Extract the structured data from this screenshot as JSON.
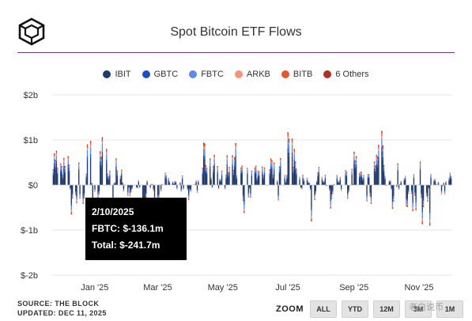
{
  "header": {
    "title": "Spot Bitcoin ETF Flows"
  },
  "chart_data": {
    "type": "bar",
    "title": "Spot Bitcoin ETF Flows",
    "y_unit": "USD",
    "ylim": [
      -2000,
      2000
    ],
    "y_ticks": [
      {
        "value": 2000,
        "label": "$2b"
      },
      {
        "value": 1000,
        "label": "$1b"
      },
      {
        "value": 0,
        "label": "$0"
      },
      {
        "value": -1000,
        "label": "$-1b"
      },
      {
        "value": -2000,
        "label": "$-2b"
      }
    ],
    "x_range": [
      "2024-12-01",
      "2025-12-11"
    ],
    "x_ticks": [
      {
        "date": "2025-01-01",
        "label": "Jan '25"
      },
      {
        "date": "2025-03-01",
        "label": "Mar '25"
      },
      {
        "date": "2025-05-01",
        "label": "May '25"
      },
      {
        "date": "2025-07-01",
        "label": "Jul '25"
      },
      {
        "date": "2025-09-01",
        "label": "Sep '25"
      },
      {
        "date": "2025-11-01",
        "label": "Nov '25"
      }
    ],
    "grid": true,
    "legend_position": "top-center",
    "series": [
      {
        "name": "IBIT",
        "color": "#1f3a6b"
      },
      {
        "name": "GBTC",
        "color": "#1b4fc4"
      },
      {
        "name": "FBTC",
        "color": "#5b8ce8"
      },
      {
        "name": "ARKB",
        "color": "#f4937a"
      },
      {
        "name": "BITB",
        "color": "#e8542b"
      },
      {
        "name": "6 Others",
        "color": "#b03020"
      }
    ],
    "daily_total": [
      {
        "date": "2024-12-02",
        "value": 350
      },
      {
        "date": "2024-12-03",
        "value": 700
      },
      {
        "date": "2024-12-04",
        "value": 560
      },
      {
        "date": "2024-12-05",
        "value": 760
      },
      {
        "date": "2024-12-06",
        "value": 380
      },
      {
        "date": "2024-12-09",
        "value": 480
      },
      {
        "date": "2024-12-10",
        "value": 420
      },
      {
        "date": "2024-12-11",
        "value": 220
      },
      {
        "date": "2024-12-12",
        "value": 600
      },
      {
        "date": "2024-12-13",
        "value": 420
      },
      {
        "date": "2024-12-16",
        "value": 640
      },
      {
        "date": "2024-12-17",
        "value": 450
      },
      {
        "date": "2024-12-18",
        "value": -100
      },
      {
        "date": "2024-12-19",
        "value": -650
      },
      {
        "date": "2024-12-20",
        "value": -300
      },
      {
        "date": "2024-12-23",
        "value": -220
      },
      {
        "date": "2024-12-24",
        "value": -400
      },
      {
        "date": "2024-12-26",
        "value": 500
      },
      {
        "date": "2024-12-27",
        "value": -300
      },
      {
        "date": "2024-12-30",
        "value": -420
      },
      {
        "date": "2024-12-31",
        "value": -300
      },
      {
        "date": "2025-01-02",
        "value": 250
      },
      {
        "date": "2025-01-03",
        "value": 900
      },
      {
        "date": "2025-01-06",
        "value": 980
      },
      {
        "date": "2025-01-07",
        "value": 50
      },
      {
        "date": "2025-01-08",
        "value": -580
      },
      {
        "date": "2025-01-10",
        "value": -150
      },
      {
        "date": "2025-01-13",
        "value": -280
      },
      {
        "date": "2025-01-14",
        "value": -210
      },
      {
        "date": "2025-01-15",
        "value": 750
      },
      {
        "date": "2025-01-16",
        "value": 620
      },
      {
        "date": "2025-01-17",
        "value": 1060
      },
      {
        "date": "2025-01-21",
        "value": 800
      },
      {
        "date": "2025-01-22",
        "value": 250
      },
      {
        "date": "2025-01-23",
        "value": 190
      },
      {
        "date": "2025-01-24",
        "value": 320
      },
      {
        "date": "2025-01-27",
        "value": -450
      },
      {
        "date": "2025-01-28",
        "value": 40
      },
      {
        "date": "2025-01-29",
        "value": 60
      },
      {
        "date": "2025-01-30",
        "value": 590
      },
      {
        "date": "2025-01-31",
        "value": 320
      },
      {
        "date": "2025-02-03",
        "value": 200
      },
      {
        "date": "2025-02-04",
        "value": 340
      },
      {
        "date": "2025-02-05",
        "value": 60
      },
      {
        "date": "2025-02-06",
        "value": -140
      },
      {
        "date": "2025-02-07",
        "value": 10
      },
      {
        "date": "2025-02-10",
        "value": -242
      },
      {
        "date": "2025-02-11",
        "value": -60
      },
      {
        "date": "2025-02-12",
        "value": -250
      },
      {
        "date": "2025-02-13",
        "value": -160
      },
      {
        "date": "2025-02-14",
        "value": -80
      },
      {
        "date": "2025-02-18",
        "value": -60
      },
      {
        "date": "2025-02-19",
        "value": -70
      },
      {
        "date": "2025-02-20",
        "value": 100
      },
      {
        "date": "2025-02-21",
        "value": -60
      },
      {
        "date": "2025-02-24",
        "value": -520
      },
      {
        "date": "2025-02-25",
        "value": -1000
      },
      {
        "date": "2025-02-26",
        "value": -750
      },
      {
        "date": "2025-02-27",
        "value": -280
      },
      {
        "date": "2025-02-28",
        "value": 100
      },
      {
        "date": "2025-03-03",
        "value": -70
      },
      {
        "date": "2025-03-04",
        "value": 20
      },
      {
        "date": "2025-03-05",
        "value": 20
      },
      {
        "date": "2025-03-06",
        "value": -130
      },
      {
        "date": "2025-03-07",
        "value": -410
      },
      {
        "date": "2025-03-10",
        "value": -370
      },
      {
        "date": "2025-03-11",
        "value": -320
      },
      {
        "date": "2025-03-12",
        "value": 10
      },
      {
        "date": "2025-03-13",
        "value": -140
      },
      {
        "date": "2025-03-14",
        "value": 20
      },
      {
        "date": "2025-03-17",
        "value": 270
      },
      {
        "date": "2025-03-18",
        "value": 210
      },
      {
        "date": "2025-03-19",
        "value": 10
      },
      {
        "date": "2025-03-20",
        "value": 160
      },
      {
        "date": "2025-03-21",
        "value": 80
      },
      {
        "date": "2025-03-24",
        "value": 80
      },
      {
        "date": "2025-03-25",
        "value": 30
      },
      {
        "date": "2025-03-26",
        "value": 90
      },
      {
        "date": "2025-03-27",
        "value": 80
      },
      {
        "date": "2025-03-28",
        "value": -90
      },
      {
        "date": "2025-03-31",
        "value": 60
      },
      {
        "date": "2025-04-01",
        "value": -150
      },
      {
        "date": "2025-04-02",
        "value": 210
      },
      {
        "date": "2025-04-03",
        "value": -100
      },
      {
        "date": "2025-04-07",
        "value": -110
      },
      {
        "date": "2025-04-08",
        "value": -330
      },
      {
        "date": "2025-04-09",
        "value": -130
      },
      {
        "date": "2025-04-10",
        "value": -150
      },
      {
        "date": "2025-04-14",
        "value": 20
      },
      {
        "date": "2025-04-15",
        "value": 100
      },
      {
        "date": "2025-04-16",
        "value": -170
      },
      {
        "date": "2025-04-17",
        "value": 100
      },
      {
        "date": "2025-04-21",
        "value": 380
      },
      {
        "date": "2025-04-22",
        "value": 940
      },
      {
        "date": "2025-04-23",
        "value": 920
      },
      {
        "date": "2025-04-24",
        "value": 440
      },
      {
        "date": "2025-04-25",
        "value": 380
      },
      {
        "date": "2025-04-28",
        "value": 590
      },
      {
        "date": "2025-04-29",
        "value": 170
      },
      {
        "date": "2025-04-30",
        "value": -60
      },
      {
        "date": "2025-05-01",
        "value": 420
      },
      {
        "date": "2025-05-02",
        "value": 670
      },
      {
        "date": "2025-05-05",
        "value": 420
      },
      {
        "date": "2025-05-06",
        "value": -85
      },
      {
        "date": "2025-05-07",
        "value": 140
      },
      {
        "date": "2025-05-08",
        "value": 120
      },
      {
        "date": "2025-05-09",
        "value": 320
      },
      {
        "date": "2025-05-12",
        "value": -90
      },
      {
        "date": "2025-05-13",
        "value": 230
      },
      {
        "date": "2025-05-14",
        "value": 660
      },
      {
        "date": "2025-05-15",
        "value": 280
      },
      {
        "date": "2025-05-16",
        "value": 400
      },
      {
        "date": "2025-05-19",
        "value": 660
      },
      {
        "date": "2025-05-20",
        "value": 330
      },
      {
        "date": "2025-05-21",
        "value": 610
      },
      {
        "date": "2025-05-22",
        "value": 930
      },
      {
        "date": "2025-05-23",
        "value": 210
      },
      {
        "date": "2025-05-27",
        "value": 390
      },
      {
        "date": "2025-05-28",
        "value": 430
      },
      {
        "date": "2025-05-29",
        "value": -350
      },
      {
        "date": "2025-05-30",
        "value": -620
      },
      {
        "date": "2025-06-02",
        "value": 380
      },
      {
        "date": "2025-06-03",
        "value": -270
      },
      {
        "date": "2025-06-04",
        "value": -80
      },
      {
        "date": "2025-06-05",
        "value": -280
      },
      {
        "date": "2025-06-06",
        "value": 320
      },
      {
        "date": "2025-06-09",
        "value": 390
      },
      {
        "date": "2025-06-10",
        "value": 430
      },
      {
        "date": "2025-06-11",
        "value": 160
      },
      {
        "date": "2025-06-12",
        "value": 320
      },
      {
        "date": "2025-06-13",
        "value": 300
      },
      {
        "date": "2025-06-16",
        "value": 410
      },
      {
        "date": "2025-06-17",
        "value": 220
      },
      {
        "date": "2025-06-18",
        "value": 390
      },
      {
        "date": "2025-06-20",
        "value": 5
      },
      {
        "date": "2025-06-23",
        "value": 350
      },
      {
        "date": "2025-06-24",
        "value": 590
      },
      {
        "date": "2025-06-25",
        "value": 550
      },
      {
        "date": "2025-06-26",
        "value": 230
      },
      {
        "date": "2025-06-27",
        "value": 500
      },
      {
        "date": "2025-06-30",
        "value": 100
      },
      {
        "date": "2025-07-01",
        "value": -340
      },
      {
        "date": "2025-07-02",
        "value": 410
      },
      {
        "date": "2025-07-03",
        "value": 600
      },
      {
        "date": "2025-07-07",
        "value": 220
      },
      {
        "date": "2025-07-08",
        "value": 80
      },
      {
        "date": "2025-07-09",
        "value": 220
      },
      {
        "date": "2025-07-10",
        "value": 1170
      },
      {
        "date": "2025-07-11",
        "value": 1030
      },
      {
        "date": "2025-07-14",
        "value": 1030
      },
      {
        "date": "2025-07-15",
        "value": 400
      },
      {
        "date": "2025-07-16",
        "value": 800
      },
      {
        "date": "2025-07-17",
        "value": 520
      },
      {
        "date": "2025-07-18",
        "value": 360
      },
      {
        "date": "2025-07-21",
        "value": 180
      },
      {
        "date": "2025-07-22",
        "value": -70
      },
      {
        "date": "2025-07-23",
        "value": -90
      },
      {
        "date": "2025-07-24",
        "value": 230
      },
      {
        "date": "2025-07-25",
        "value": 130
      },
      {
        "date": "2025-07-28",
        "value": 160
      },
      {
        "date": "2025-07-29",
        "value": 80
      },
      {
        "date": "2025-07-30",
        "value": 50
      },
      {
        "date": "2025-07-31",
        "value": -110
      },
      {
        "date": "2025-08-01",
        "value": -810
      },
      {
        "date": "2025-08-04",
        "value": -330
      },
      {
        "date": "2025-08-05",
        "value": -200
      },
      {
        "date": "2025-08-06",
        "value": 90
      },
      {
        "date": "2025-08-07",
        "value": 280
      },
      {
        "date": "2025-08-08",
        "value": 400
      },
      {
        "date": "2025-08-11",
        "value": 180
      },
      {
        "date": "2025-08-12",
        "value": 90
      },
      {
        "date": "2025-08-13",
        "value": 90
      },
      {
        "date": "2025-08-14",
        "value": 230
      },
      {
        "date": "2025-08-15",
        "value": -15
      },
      {
        "date": "2025-08-18",
        "value": -120
      },
      {
        "date": "2025-08-19",
        "value": -520
      },
      {
        "date": "2025-08-20",
        "value": -310
      },
      {
        "date": "2025-08-21",
        "value": -190
      },
      {
        "date": "2025-08-22",
        "value": 20
      },
      {
        "date": "2025-08-25",
        "value": 220
      },
      {
        "date": "2025-08-26",
        "value": 90
      },
      {
        "date": "2025-08-27",
        "value": 80
      },
      {
        "date": "2025-08-28",
        "value": 180
      },
      {
        "date": "2025-08-29",
        "value": -130
      },
      {
        "date": "2025-09-02",
        "value": 330
      },
      {
        "date": "2025-09-03",
        "value": 300
      },
      {
        "date": "2025-09-04",
        "value": -300
      },
      {
        "date": "2025-09-05",
        "value": -160
      },
      {
        "date": "2025-09-08",
        "value": 360
      },
      {
        "date": "2025-09-09",
        "value": 20
      },
      {
        "date": "2025-09-10",
        "value": 740
      },
      {
        "date": "2025-09-11",
        "value": 550
      },
      {
        "date": "2025-09-12",
        "value": 640
      },
      {
        "date": "2025-09-15",
        "value": 260
      },
      {
        "date": "2025-09-16",
        "value": 290
      },
      {
        "date": "2025-09-17",
        "value": 290
      },
      {
        "date": "2025-09-18",
        "value": 160
      },
      {
        "date": "2025-09-19",
        "value": 220
      },
      {
        "date": "2025-09-22",
        "value": -360
      },
      {
        "date": "2025-09-23",
        "value": 240
      },
      {
        "date": "2025-09-24",
        "value": 240
      },
      {
        "date": "2025-09-25",
        "value": -250
      },
      {
        "date": "2025-09-26",
        "value": -420
      },
      {
        "date": "2025-09-29",
        "value": 520
      },
      {
        "date": "2025-09-30",
        "value": 430
      },
      {
        "date": "2025-10-01",
        "value": 670
      },
      {
        "date": "2025-10-02",
        "value": 630
      },
      {
        "date": "2025-10-03",
        "value": 890
      },
      {
        "date": "2025-10-06",
        "value": 1200
      },
      {
        "date": "2025-10-07",
        "value": 880
      },
      {
        "date": "2025-10-08",
        "value": 440
      },
      {
        "date": "2025-10-09",
        "value": 200
      },
      {
        "date": "2025-10-10",
        "value": -10
      },
      {
        "date": "2025-10-13",
        "value": 100
      },
      {
        "date": "2025-10-14",
        "value": 100
      },
      {
        "date": "2025-10-15",
        "value": -100
      },
      {
        "date": "2025-10-16",
        "value": -530
      },
      {
        "date": "2025-10-17",
        "value": -370
      },
      {
        "date": "2025-10-20",
        "value": -40
      },
      {
        "date": "2025-10-21",
        "value": 480
      },
      {
        "date": "2025-10-22",
        "value": -100
      },
      {
        "date": "2025-10-23",
        "value": 20
      },
      {
        "date": "2025-10-24",
        "value": 90
      },
      {
        "date": "2025-10-27",
        "value": 150
      },
      {
        "date": "2025-10-28",
        "value": 200
      },
      {
        "date": "2025-10-29",
        "value": -470
      },
      {
        "date": "2025-10-30",
        "value": -490
      },
      {
        "date": "2025-10-31",
        "value": -190
      },
      {
        "date": "2025-11-03",
        "value": -190
      },
      {
        "date": "2025-11-04",
        "value": -580
      },
      {
        "date": "2025-11-05",
        "value": 240
      },
      {
        "date": "2025-11-06",
        "value": -240
      },
      {
        "date": "2025-11-07",
        "value": -560
      },
      {
        "date": "2025-11-10",
        "value": 5
      },
      {
        "date": "2025-11-11",
        "value": 520
      },
      {
        "date": "2025-11-12",
        "value": -280
      },
      {
        "date": "2025-11-13",
        "value": -870
      },
      {
        "date": "2025-11-14",
        "value": -490
      },
      {
        "date": "2025-11-17",
        "value": -250
      },
      {
        "date": "2025-11-18",
        "value": -370
      },
      {
        "date": "2025-11-19",
        "value": -80
      },
      {
        "date": "2025-11-20",
        "value": -900
      },
      {
        "date": "2025-11-21",
        "value": 240
      },
      {
        "date": "2025-11-24",
        "value": 130
      },
      {
        "date": "2025-11-25",
        "value": 130
      },
      {
        "date": "2025-11-26",
        "value": 20
      },
      {
        "date": "2025-11-28",
        "value": 70
      },
      {
        "date": "2025-12-01",
        "value": -200
      },
      {
        "date": "2025-12-02",
        "value": -20
      },
      {
        "date": "2025-12-03",
        "value": 50
      },
      {
        "date": "2025-12-04",
        "value": -200
      },
      {
        "date": "2025-12-05",
        "value": 80
      },
      {
        "date": "2025-12-08",
        "value": 150
      },
      {
        "date": "2025-12-09",
        "value": 270
      },
      {
        "date": "2025-12-10",
        "value": 200
      }
    ],
    "tooltip": {
      "date": "2/10/2025",
      "lines": [
        "FBTC: $-136.1m",
        "Total: $-241.7m"
      ]
    }
  },
  "footer": {
    "source": "SOURCE: THE BLOCK",
    "updated": "UPDATED: DEC 11, 2025"
  },
  "zoom": {
    "label": "ZOOM",
    "buttons": [
      "ALL",
      "YTD",
      "12M",
      "3M",
      "1M"
    ]
  },
  "watermark": "老白说币"
}
